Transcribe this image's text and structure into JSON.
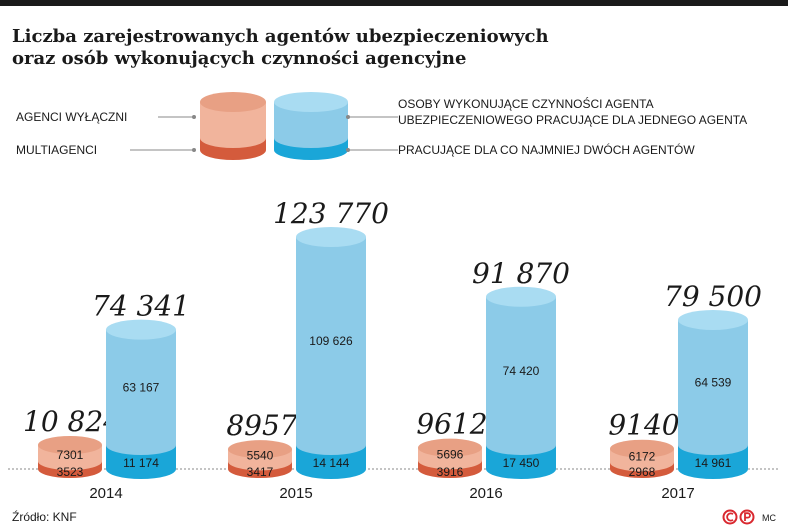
{
  "title_line1": "Liczba zarejestrowanych agentów ubezpieczeniowych",
  "title_line2": "oraz osób wykonujących czynności agencyjne",
  "legend": {
    "left_top": "AGENCI WYŁĄCZNI",
    "left_bottom": "MULTIAGENCI",
    "right_top_line1": "OSOBY WYKONUJĄCE CZYNNOŚCI AGENTA",
    "right_top_line2": "UBEZPIECZENIOWEGO PRACUJĄCE DLA JEDNEGO AGENTA",
    "right_bottom": "PRACUJĄCE DLA CO NAJMNIEJ DWÓCH AGENTÓW"
  },
  "source": "Źródło: KNF",
  "credit": "MC",
  "colors": {
    "agent_top": "#e8a084",
    "agent_body": "#f1b49c",
    "agent_bottom": "#d45b3c",
    "person_top": "#a9dcf2",
    "person_body": "#8ccbe8",
    "person_bottom": "#1aa6d8",
    "text": "#1a1a1a"
  },
  "chart_data": {
    "type": "bar",
    "categories": [
      "2014",
      "2015",
      "2016",
      "2017"
    ],
    "agents_total_labels": [
      "10 824",
      "8957",
      "9612",
      "9140"
    ],
    "persons_total_labels": [
      "74 341",
      "123 770",
      "91 870",
      "79 500"
    ],
    "series": [
      {
        "name": "AGENCI WYŁĄCZNI",
        "values": [
          7301,
          5540,
          5696,
          6172
        ],
        "labels": [
          "7301",
          "5540",
          "5696",
          "6172"
        ]
      },
      {
        "name": "MULTIAGENCI",
        "values": [
          3523,
          3417,
          3916,
          2968
        ],
        "labels": [
          "3523",
          "3417",
          "3916",
          "2968"
        ]
      },
      {
        "name": "OSOBY WYKONUJĄCE CZYNNOŚCI AGENTA UBEZPIECZENIOWEGO PRACUJĄCE DLA JEDNEGO AGENTA",
        "values": [
          63167,
          109626,
          74420,
          64539
        ],
        "labels": [
          "63 167",
          "109 626",
          "74 420",
          "64 539"
        ]
      },
      {
        "name": "PRACUJĄCE DLA CO NAJMNIEJ DWÓCH AGENTÓW",
        "values": [
          11174,
          14144,
          17450,
          14961
        ],
        "labels": [
          "11 174",
          "14 144",
          "17 450",
          "14 961"
        ]
      }
    ]
  }
}
